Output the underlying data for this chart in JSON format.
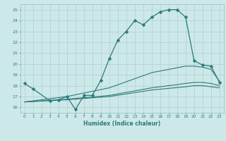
{
  "xlabel": "Humidex (Indice chaleur)",
  "background_color": "#cde8e8",
  "grid_color": "#afd0d0",
  "line_color": "#2d7a7a",
  "xlim": [
    -0.5,
    23.5
  ],
  "ylim": [
    15.5,
    25.5
  ],
  "xtick_vals": [
    0,
    1,
    2,
    3,
    4,
    5,
    6,
    7,
    8,
    9,
    10,
    11,
    12,
    13,
    14,
    15,
    16,
    17,
    18,
    19,
    20,
    21,
    22,
    23
  ],
  "xtick_labels": [
    "0",
    "1",
    "2",
    "3",
    "4",
    "5",
    "6",
    "7",
    "8",
    "9",
    "10",
    "11",
    "12",
    "13",
    "14",
    "15",
    "16",
    "17",
    "18",
    "19",
    "20",
    "21",
    "22",
    "23"
  ],
  "ytick_vals": [
    16,
    17,
    18,
    19,
    20,
    21,
    22,
    23,
    24,
    25
  ],
  "ytick_labels": [
    "16",
    "17",
    "18",
    "19",
    "20",
    "21",
    "22",
    "23",
    "24",
    "25"
  ],
  "series": [
    {
      "x": [
        0,
        1,
        3,
        4,
        5,
        6,
        7,
        8,
        9,
        10,
        11,
        12,
        13,
        14,
        15,
        16,
        17,
        18,
        19,
        20,
        21,
        22,
        23
      ],
      "y": [
        18.2,
        17.7,
        16.6,
        16.7,
        17.0,
        15.8,
        17.1,
        17.1,
        18.5,
        20.5,
        22.2,
        23.0,
        24.0,
        23.6,
        24.3,
        24.8,
        25.0,
        25.0,
        24.3,
        20.3,
        19.9,
        19.8,
        18.3
      ],
      "has_marker": true,
      "marker": "D",
      "markersize": 2.5,
      "linewidth": 0.9
    },
    {
      "x": [
        0,
        5,
        10,
        15,
        19,
        20,
        21,
        22,
        23
      ],
      "y": [
        16.5,
        17.0,
        17.8,
        19.2,
        19.8,
        19.8,
        19.7,
        19.5,
        18.4
      ],
      "has_marker": false,
      "linewidth": 0.8
    },
    {
      "x": [
        0,
        5,
        10,
        15,
        19,
        20,
        21,
        22,
        23
      ],
      "y": [
        16.5,
        16.75,
        17.1,
        17.8,
        18.2,
        18.3,
        18.3,
        18.2,
        18.0
      ],
      "has_marker": false,
      "linewidth": 0.8
    },
    {
      "x": [
        0,
        5,
        10,
        15,
        19,
        20,
        21,
        22,
        23
      ],
      "y": [
        16.5,
        16.7,
        17.0,
        17.6,
        17.9,
        18.0,
        18.0,
        17.9,
        17.8
      ],
      "has_marker": false,
      "linewidth": 0.8
    }
  ]
}
